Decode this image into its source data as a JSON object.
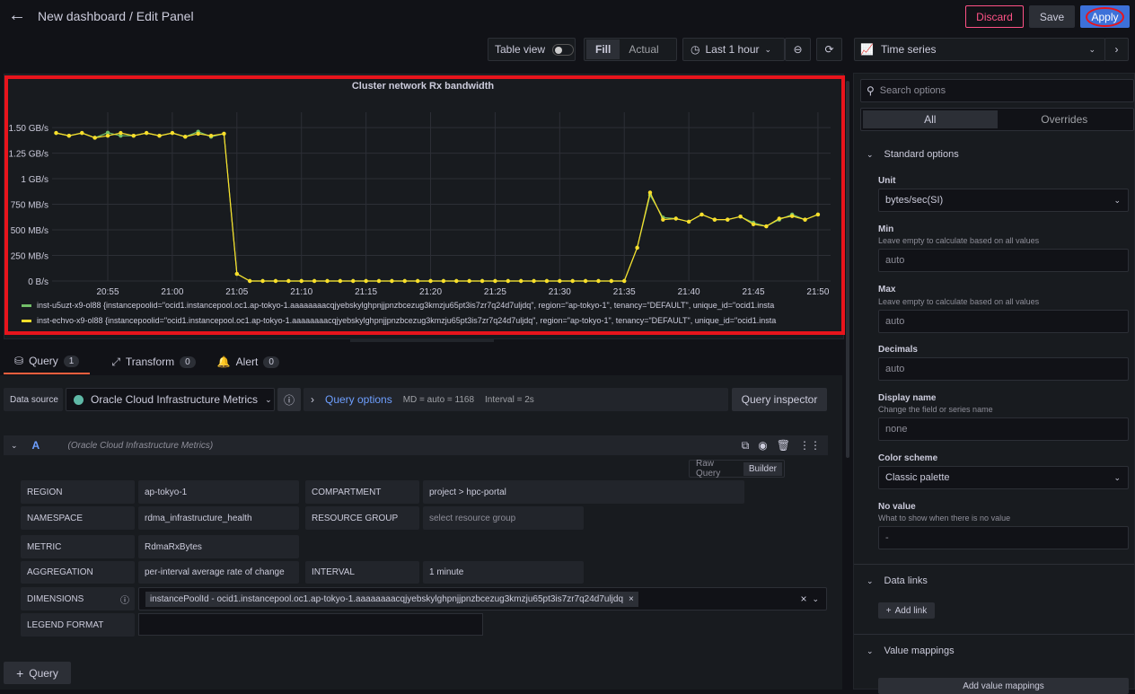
{
  "header": {
    "title": "New dashboard / Edit Panel",
    "discard": "Discard",
    "save": "Save",
    "apply": "Apply"
  },
  "toolbar": {
    "table_view": "Table view",
    "fill": "Fill",
    "actual": "Actual",
    "time_range": "Last 1 hour",
    "viz": "Time series"
  },
  "panel": {
    "title": "Cluster network Rx bandwidth"
  },
  "chart_data": {
    "type": "line",
    "title": "Cluster network Rx bandwidth",
    "ylim": [
      0,
      1.65
    ],
    "yunit": "GB/s",
    "yticks": [
      {
        "v": 0,
        "label": "0 B/s"
      },
      {
        "v": 0.25,
        "label": "250 MB/s"
      },
      {
        "v": 0.5,
        "label": "500 MB/s"
      },
      {
        "v": 0.75,
        "label": "750 MB/s"
      },
      {
        "v": 1,
        "label": "1 GB/s"
      },
      {
        "v": 1.25,
        "label": "1.25 GB/s"
      },
      {
        "v": 1.5,
        "label": "1.50 GB/s"
      }
    ],
    "xticks": [
      "20:55",
      "21:00",
      "21:05",
      "21:10",
      "21:15",
      "21:20",
      "21:25",
      "21:30",
      "21:35",
      "21:40",
      "21:45",
      "21:50"
    ],
    "x_start": "20:51",
    "x_end": "21:50",
    "x_step_minutes": 1,
    "grid": true,
    "legend": "bottom",
    "series": [
      {
        "name": "inst-u5uzt-x9-ol88 {instancepoolid=\"ocid1.instancepool.oc1.ap-tokyo-1.aaaaaaaacqjyebskylghpnjjpnzbcezug3kmzju65pt3is7zr7q24d7uljdq\", region=\"ap-tokyo-1\", tenancy=\"DEFAULT\", unique_id=\"ocid1.insta",
        "color": "#73bf69",
        "values": [
          1.447,
          1.42,
          1.447,
          1.4,
          1.45,
          1.42,
          1.42,
          1.447,
          1.42,
          1.447,
          1.41,
          1.46,
          1.41,
          1.44,
          0.07,
          0,
          0,
          0,
          0,
          0,
          0,
          0,
          0,
          0,
          0,
          0,
          0,
          0,
          0,
          0,
          0,
          0,
          0,
          0,
          0,
          0,
          0,
          0,
          0,
          0,
          0,
          0,
          0,
          0,
          0,
          0.325,
          0.84,
          0.62,
          0.61,
          0.58,
          0.65,
          0.6,
          0.6,
          0.63,
          0.57,
          0.535,
          0.6,
          0.65,
          0.6,
          0.65
        ]
      },
      {
        "name": "inst-echvo-x9-ol88 {instancepoolid=\"ocid1.instancepool.oc1.ap-tokyo-1.aaaaaaaacqjyebskylghpnjjpnzbcezug3kmzju65pt3is7zr7q24d7uljdq\", region=\"ap-tokyo-1\", tenancy=\"DEFAULT\", unique_id=\"ocid1.insta",
        "color": "#fade2a",
        "values": [
          1.447,
          1.42,
          1.447,
          1.4,
          1.42,
          1.447,
          1.42,
          1.447,
          1.42,
          1.447,
          1.41,
          1.44,
          1.42,
          1.44,
          0.07,
          0,
          0,
          0,
          0,
          0,
          0,
          0,
          0,
          0,
          0,
          0,
          0,
          0,
          0,
          0,
          0,
          0,
          0,
          0,
          0,
          0,
          0,
          0,
          0,
          0,
          0,
          0,
          0,
          0,
          0,
          0.325,
          0.865,
          0.6,
          0.61,
          0.58,
          0.65,
          0.6,
          0.6,
          0.63,
          0.555,
          0.535,
          0.61,
          0.635,
          0.6,
          0.65
        ]
      }
    ]
  },
  "tabs": [
    {
      "label": "Query",
      "count": "1"
    },
    {
      "label": "Transform",
      "count": "0"
    },
    {
      "label": "Alert",
      "count": "0"
    }
  ],
  "query": {
    "ds_label": "Data source",
    "ds_value": "Oracle Cloud Infrastructure Metrics",
    "options_label": "Query options",
    "md": "MD = auto = 1168",
    "interval": "Interval = 2s",
    "inspector": "Query inspector",
    "row_letter": "A",
    "row_ds": "(Oracle Cloud Infrastructure Metrics)",
    "raw_query": "Raw Query",
    "builder": "Builder",
    "region_label": "REGION",
    "region": "ap-tokyo-1",
    "compartment_label": "COMPARTMENT",
    "compartment": "project > hpc-portal",
    "namespace_label": "NAMESPACE",
    "namespace": "rdma_infrastructure_health",
    "rg_label": "RESOURCE GROUP",
    "rg_placeholder": "select resource group",
    "metric_label": "METRIC",
    "metric": "RdmaRxBytes",
    "agg_label": "AGGREGATION",
    "agg": "per-interval average rate of change",
    "interval_label": "INTERVAL",
    "interval_value": "1 minute",
    "dims_label": "DIMENSIONS",
    "dim_tag": "instancePoolId - ocid1.instancepool.oc1.ap-tokyo-1.aaaaaaaacqjyebskylghpnjjpnzbcezug3kmzju65pt3is7zr7q24d7uljdq",
    "legend_label": "LEGEND FORMAT",
    "add_query": "Query"
  },
  "options": {
    "search_placeholder": "Search options",
    "all": "All",
    "overrides": "Overrides",
    "standard": "Standard options",
    "unit_label": "Unit",
    "unit": "bytes/sec(SI)",
    "min_label": "Min",
    "min_desc": "Leave empty to calculate based on all values",
    "min_ph": "auto",
    "max_label": "Max",
    "max_desc": "Leave empty to calculate based on all values",
    "max_ph": "auto",
    "decimals_label": "Decimals",
    "decimals_ph": "auto",
    "display_label": "Display name",
    "display_desc": "Change the field or series name",
    "display_ph": "none",
    "color_label": "Color scheme",
    "color_value": "Classic palette",
    "novalue_label": "No value",
    "novalue_desc": "What to show when there is no value",
    "novalue_ph": "-",
    "data_links": "Data links",
    "add_link": "Add link",
    "value_mappings": "Value mappings",
    "add_mappings": "Add value mappings"
  },
  "colors": {
    "accent": "#3d71d9",
    "discard": "#ff5286",
    "annotation": "#e8141c"
  }
}
